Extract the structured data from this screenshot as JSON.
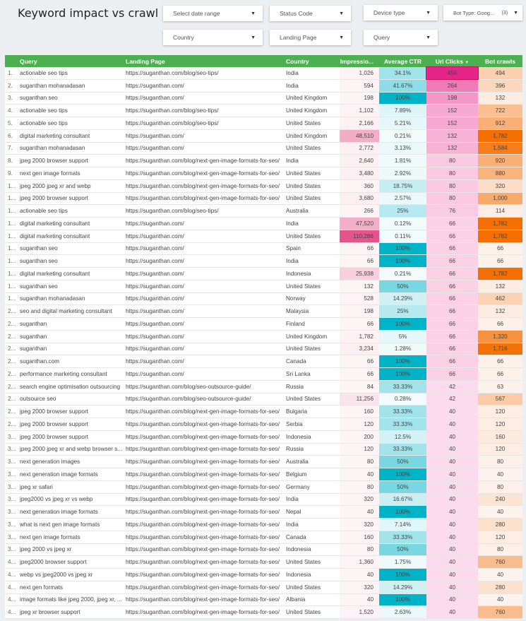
{
  "title": "Keyword impact vs crawl",
  "filters": {
    "date_range": "Select date range",
    "status_code": "Status Code",
    "device_type": "Device type",
    "bot_type": "Bot Type: Goog...",
    "bot_type_count": "(3)",
    "country": "Country",
    "landing_page": "Landing Page",
    "query": "Query"
  },
  "colors": {
    "header": "#4caf50",
    "impressions_low": "#fdf4f6",
    "impressions_high": "#e4558b",
    "ctr_low": "#f2fbfc",
    "ctr_high": "#00b3c6",
    "clicks_low": "#fcdcec",
    "clicks_high": "#e6248a",
    "crawls_low": "#fdf3ee",
    "crawls_high": "#f46e00"
  },
  "table": {
    "headers": [
      "",
      "Query",
      "Landing Page",
      "Country",
      "Impressio...",
      "Average CTR",
      "Url Clicks",
      "Bot crawls"
    ],
    "sort_icon": "▼",
    "rows": [
      [
        "1.",
        "actionable seo tips",
        "https://suganthan.com/blog/seo-tips/",
        "India",
        "1,026",
        "34.1%",
        "456",
        "494"
      ],
      [
        "2.",
        "suganthan mohanadasan",
        "https://suganthan.com/",
        "India",
        "594",
        "41.67%",
        "264",
        "396"
      ],
      [
        "3.",
        "suganthan seo",
        "https://suganthan.com/",
        "United Kingdom",
        "198",
        "100%",
        "198",
        "132"
      ],
      [
        "4.",
        "actionable seo tips",
        "https://suganthan.com/blog/seo-tips/",
        "United Kingdom",
        "1,102",
        "7.89%",
        "152",
        "722"
      ],
      [
        "5.",
        "actionable seo tips",
        "https://suganthan.com/blog/seo-tips/",
        "United States",
        "2,166",
        "5.21%",
        "152",
        "912"
      ],
      [
        "6.",
        "digital marketing consultant",
        "https://suganthan.com/",
        "United Kingdom",
        "48,510",
        "0.21%",
        "132",
        "1,782"
      ],
      [
        "7.",
        "suganthan mohanadasan",
        "https://suganthan.com/",
        "United States",
        "2,772",
        "3.13%",
        "132",
        "1,584"
      ],
      [
        "8.",
        "jpeg 2000 browser support",
        "https://suganthan.com/blog/next-gen-image-formats-for-seo/",
        "India",
        "2,640",
        "1.81%",
        "80",
        "920"
      ],
      [
        "9.",
        "next gen image formats",
        "https://suganthan.com/blog/next-gen-image-formats-for-seo/",
        "United States",
        "3,480",
        "2.92%",
        "80",
        "880"
      ],
      [
        "1...",
        "jpeg 2000 jpeg xr and webp",
        "https://suganthan.com/blog/next-gen-image-formats-for-seo/",
        "United States",
        "360",
        "18.75%",
        "80",
        "320"
      ],
      [
        "1...",
        "jpeg 2000 browser support",
        "https://suganthan.com/blog/next-gen-image-formats-for-seo/",
        "United States",
        "3,680",
        "2.57%",
        "80",
        "1,000"
      ],
      [
        "1...",
        "actionable seo tips",
        "https://suganthan.com/blog/seo-tips/",
        "Australia",
        "266",
        "25%",
        "76",
        "114"
      ],
      [
        "1...",
        "digital marketing consultant",
        "https://suganthan.com/",
        "India",
        "47,520",
        "0.12%",
        "66",
        "1,782"
      ],
      [
        "1...",
        "digital marketing consultant",
        "https://suganthan.com/",
        "United States",
        "110,286",
        "0.11%",
        "66",
        "1,782"
      ],
      [
        "1...",
        "suganthan seo",
        "https://suganthan.com/",
        "Spain",
        "66",
        "100%",
        "66",
        "66"
      ],
      [
        "1...",
        "suganthan seo",
        "https://suganthan.com/",
        "India",
        "66",
        "100%",
        "66",
        "66"
      ],
      [
        "1...",
        "digital marketing consultant",
        "https://suganthan.com/",
        "Indonesia",
        "25,938",
        "0.21%",
        "66",
        "1,782"
      ],
      [
        "1...",
        "suganthan seo",
        "https://suganthan.com/",
        "United States",
        "132",
        "50%",
        "66",
        "132"
      ],
      [
        "1...",
        "suganthan mohanadasan",
        "https://suganthan.com/",
        "Norway",
        "528",
        "14.29%",
        "66",
        "462"
      ],
      [
        "2...",
        "seo and digital marketing consultant",
        "https://suganthan.com/",
        "Malaysia",
        "198",
        "25%",
        "66",
        "132"
      ],
      [
        "2...",
        "suganthan",
        "https://suganthan.com/",
        "Finland",
        "66",
        "100%",
        "66",
        "66"
      ],
      [
        "2...",
        "suganthan",
        "https://suganthan.com/",
        "United Kingdom",
        "1,782",
        "5%",
        "66",
        "1,320"
      ],
      [
        "2...",
        "suganthan",
        "https://suganthan.com/",
        "United States",
        "3,234",
        "1.28%",
        "66",
        "1,716"
      ],
      [
        "2...",
        "suganthan.com",
        "https://suganthan.com/",
        "Canada",
        "66",
        "100%",
        "66",
        "66"
      ],
      [
        "2...",
        "performance marketing consultant",
        "https://suganthan.com/",
        "Sri Lanka",
        "66",
        "100%",
        "66",
        "66"
      ],
      [
        "2...",
        "search engine optimisation outsourcing",
        "https://suganthan.com/blog/seo-outsource-guide/",
        "Russia",
        "84",
        "33.33%",
        "42",
        "63"
      ],
      [
        "2...",
        "outsource seo",
        "https://suganthan.com/blog/seo-outsource-guide/",
        "United States",
        "11,256",
        "0.28%",
        "42",
        "567"
      ],
      [
        "2...",
        "jpeg 2000 browser support",
        "https://suganthan.com/blog/next-gen-image-formats-for-seo/",
        "Bulgaria",
        "160",
        "33.33%",
        "40",
        "120"
      ],
      [
        "2...",
        "jpeg 2000 browser support",
        "https://suganthan.com/blog/next-gen-image-formats-for-seo/",
        "Serbia",
        "120",
        "33.33%",
        "40",
        "120"
      ],
      [
        "3...",
        "jpeg 2000 browser support",
        "https://suganthan.com/blog/next-gen-image-formats-for-seo/",
        "Indonesia",
        "200",
        "12.5%",
        "40",
        "160"
      ],
      [
        "3...",
        "jpeg 2000 jpeg xr and webp browser s...",
        "https://suganthan.com/blog/next-gen-image-formats-for-seo/",
        "Russia",
        "120",
        "33.33%",
        "40",
        "120"
      ],
      [
        "3...",
        "next generation images",
        "https://suganthan.com/blog/next-gen-image-formats-for-seo/",
        "Australia",
        "80",
        "50%",
        "40",
        "80"
      ],
      [
        "3...",
        "next generation image formats",
        "https://suganthan.com/blog/next-gen-image-formats-for-seo/",
        "Belgium",
        "40",
        "100%",
        "40",
        "40"
      ],
      [
        "3...",
        "jpeg xr safari",
        "https://suganthan.com/blog/next-gen-image-formats-for-seo/",
        "Germany",
        "80",
        "50%",
        "40",
        "80"
      ],
      [
        "3...",
        "jpeg2000 vs jpeg xr vs webp",
        "https://suganthan.com/blog/next-gen-image-formats-for-seo/",
        "India",
        "320",
        "16.67%",
        "40",
        "240"
      ],
      [
        "3...",
        "next generation image formats",
        "https://suganthan.com/blog/next-gen-image-formats-for-seo/",
        "Nepal",
        "40",
        "100%",
        "40",
        "40"
      ],
      [
        "3...",
        "what is next gen image formats",
        "https://suganthan.com/blog/next-gen-image-formats-for-seo/",
        "India",
        "320",
        "7.14%",
        "40",
        "280"
      ],
      [
        "3...",
        "next gen image formats",
        "https://suganthan.com/blog/next-gen-image-formats-for-seo/",
        "Canada",
        "160",
        "33.33%",
        "40",
        "120"
      ],
      [
        "3...",
        "jpeg 2000 vs jpeg xr",
        "https://suganthan.com/blog/next-gen-image-formats-for-seo/",
        "Indonesia",
        "80",
        "50%",
        "40",
        "80"
      ],
      [
        "4...",
        "jpeg2000 browser support",
        "https://suganthan.com/blog/next-gen-image-formats-for-seo/",
        "United States",
        "1,360",
        "1.75%",
        "40",
        "760"
      ],
      [
        "4...",
        "webp vs jpeg2000 vs jpeg xr",
        "https://suganthan.com/blog/next-gen-image-formats-for-seo/",
        "Indonesia",
        "40",
        "100%",
        "40",
        "40"
      ],
      [
        "4...",
        "next gen formats",
        "https://suganthan.com/blog/next-gen-image-formats-for-seo/",
        "United States",
        "320",
        "14.29%",
        "40",
        "280"
      ],
      [
        "4...",
        "image formats like jpeg 2000, jpeg xr, ...",
        "https://suganthan.com/blog/next-gen-image-formats-for-seo/",
        "Albania",
        "40",
        "100%",
        "40",
        "40"
      ],
      [
        "4...",
        "jpeg xr browser support",
        "https://suganthan.com/blog/next-gen-image-formats-for-seo/",
        "United States",
        "1,520",
        "2.63%",
        "40",
        "760"
      ]
    ]
  }
}
